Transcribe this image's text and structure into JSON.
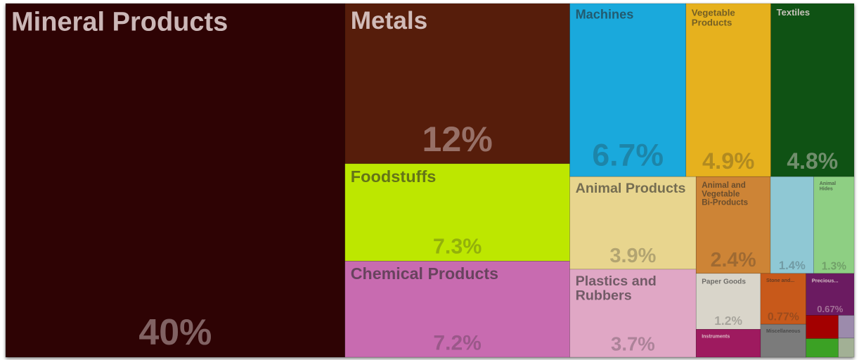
{
  "chart_data": {
    "type": "treemap",
    "categories": [
      "Mineral Products",
      "Metals",
      "Foodstuffs",
      "Chemical Products",
      "Machines",
      "Vegetable Products",
      "Textiles",
      "Animal Products",
      "Plastics and Rubbers",
      "Animal and Vegetable Bi-Products",
      null,
      "Animal Hides",
      "Paper Goods",
      "Stone and...",
      "Precious...",
      "Instruments",
      "Miscellaneous",
      null,
      null,
      null,
      null
    ],
    "values": [
      40,
      12,
      7.3,
      7.2,
      6.7,
      4.9,
      4.8,
      3.9,
      3.7,
      2.4,
      1.4,
      1.3,
      1.2,
      0.77,
      0.67,
      0.6,
      0.5,
      0.25,
      0.2,
      0.12,
      0.1
    ],
    "value_labels": [
      "40%",
      "12%",
      "7.3%",
      "7.2%",
      "6.7%",
      "4.9%",
      "4.8%",
      "3.9%",
      "3.7%",
      "2.4%",
      "1.4%",
      "1.3%",
      "1.2%",
      "0.77%",
      "0.67%",
      null,
      null,
      null,
      null,
      null,
      null
    ],
    "colors": [
      "#2e0304",
      "#561d0b",
      "#bde700",
      "#c86bb0",
      "#1aa9dc",
      "#e6b11e",
      "#0f5214",
      "#e8d58e",
      "#e0a7c5",
      "#cd8436",
      "#8fc8d4",
      "#8ecf83",
      "#d9d5ca",
      "#c8591a",
      "#6b1b61",
      "#9e1a5f",
      "#7b7b7b",
      "#a30000",
      "#3ba124",
      "#9c8bac",
      "#a2b095"
    ]
  }
}
